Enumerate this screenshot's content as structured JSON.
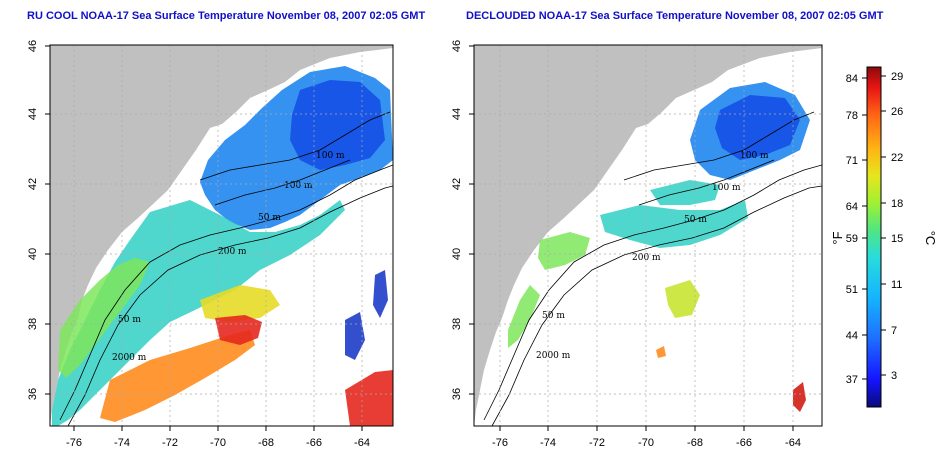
{
  "panels": [
    {
      "title": "RU COOL NOAA-17 Sea Surface Temperature November 08, 2007 02:05 GMT",
      "contour_labels": [
        "100 m",
        "100 m",
        "50 m",
        "200 m",
        "50 m",
        "2000 m"
      ]
    },
    {
      "title": "DECLOUDED NOAA-17 Sea Surface Temperature November 08, 2007 02:05 GMT",
      "contour_labels": [
        "100 m",
        "100 m",
        "50 m",
        "200 m",
        "50 m",
        "2000 m"
      ]
    }
  ],
  "axes": {
    "x_ticks": [
      "-76",
      "-74",
      "-72",
      "-70",
      "-68",
      "-66",
      "-64"
    ],
    "y_ticks": [
      "36",
      "38",
      "40",
      "42",
      "44",
      "46"
    ]
  },
  "colorbar": {
    "fahrenheit_unit": "°F",
    "celsius_unit": "°C",
    "fahrenheit_ticks": [
      "84",
      "78",
      "71",
      "64",
      "59",
      "51",
      "44",
      "37"
    ],
    "celsius_ticks": [
      "29",
      "26",
      "22",
      "18",
      "15",
      "11",
      "7",
      "3"
    ],
    "colors": [
      "#0a0a78",
      "#1414ff",
      "#1e6eff",
      "#14b4ff",
      "#28dcdc",
      "#50e682",
      "#a0f032",
      "#e6e61e",
      "#ffb414",
      "#ff6414",
      "#e61414",
      "#8c0a0a"
    ]
  },
  "colors": {
    "land": "#c0c0c0",
    "sea_bg": "#ffffff",
    "title": "#1010c8"
  }
}
